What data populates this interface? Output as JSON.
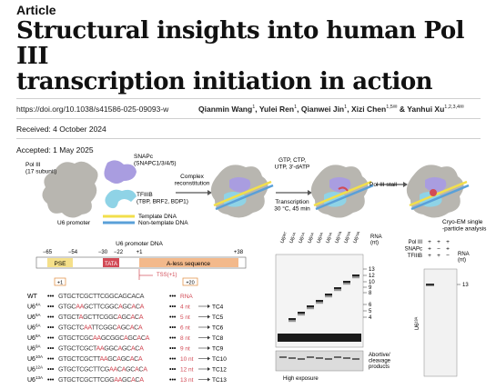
{
  "article": {
    "kind": "Article",
    "title_line1": "Structural insights into human Pol III",
    "title_line2": "transcription initiation in action",
    "doi": "https://doi.org/10.1038/s41586-025-09093-w",
    "authors": [
      {
        "name": "Qianmin Wang",
        "sup": "1"
      },
      {
        "name": "Yulei Ren",
        "sup": "1"
      },
      {
        "name": "Qianwei Jin",
        "sup": "1"
      },
      {
        "name": "Xizi Chen",
        "sup": "1,5✉"
      },
      {
        "name": "Yanhui Xu",
        "sup": "1,2,3,4✉"
      }
    ],
    "received": "Received: 4 October 2024",
    "accepted": "Accepted: 1 May 2025"
  },
  "schematic": {
    "pol3_label": "Pol III\n(17 subunit)",
    "snapc_label": "SNAPc\n(SNAPC1/3/4/5)",
    "tfiiib_label": "TFIIIB\n(TBP, BRF2, BDP1)",
    "u6_promoter_label": "U6 promoter",
    "template_dna": "Template DNA",
    "nontemplate_dna": "Non-template DNA",
    "step1": "Complex\nreconstitution",
    "step2_top": "GTP, CTP,\nUTP, 3′-dATP",
    "step2_bottom": "Transcription\n30 °C, 45 min",
    "step3": "Pol III stall",
    "step4": "Cryo-EM single\n-particle analysis",
    "colors": {
      "pol3": "#b8b6b0",
      "snapc": "#a99de0",
      "tfiiib": "#8fd3e6",
      "template": "#f2df4b",
      "nontemplate": "#5aa0d8",
      "arrow": "#555555"
    }
  },
  "promoter": {
    "header": "U6 promoter DNA",
    "positions": [
      "−65",
      "−54",
      "−30",
      "−22",
      "+1",
      "+38"
    ],
    "pse": "PSE",
    "tata": "TATA",
    "aless": "A-less sequence",
    "tss": "TSS(+1)",
    "plus1": "+1",
    "plus20": "+20",
    "colors": {
      "pse": "#f5e08a",
      "tata": "#d24a55",
      "aless": "#f3b98b"
    }
  },
  "sequences": [
    {
      "name": "WT",
      "sup": "",
      "seq": "GTGCTCGCTTCGGCAGCACA",
      "len": "RNA",
      "tc": ""
    },
    {
      "name": "U6",
      "sup": "4A",
      "seq": "GTGCAAGCTTCGGCAGCACA",
      "len": "4 nt",
      "tc": "TC4"
    },
    {
      "name": "U6",
      "sup": "5A",
      "seq": "GTGCTAGCTTCGGCAGCACA",
      "len": "5 nt",
      "tc": "TC5"
    },
    {
      "name": "U6",
      "sup": "6A",
      "seq": "GTGCTCAATTCGGCAGCACA",
      "len": "6 nt",
      "tc": "TC6"
    },
    {
      "name": "U6",
      "sup": "8A",
      "seq": "GTGCTCGCAAGCGGCAGCACA",
      "len": "8 nt",
      "tc": "TC8"
    },
    {
      "name": "U6",
      "sup": "9A",
      "seq": "GTGCTCGCTAAGGCAGCACA",
      "len": "9 nt",
      "tc": "TC9"
    },
    {
      "name": "U6",
      "sup": "10A",
      "seq": "GTGCTCGCTTAAGCAGCACA",
      "len": "10 nt",
      "tc": "TC10"
    },
    {
      "name": "U6",
      "sup": "12A",
      "seq": "GTGCTCGCTTCGAACAGCACA",
      "len": "12 nt",
      "tc": "TC12"
    },
    {
      "name": "U6",
      "sup": "13A",
      "seq": "GTGCTCGCTTCGGAAGCACA",
      "len": "13 nt",
      "tc": "TC13"
    }
  ],
  "gel1": {
    "lanes": [
      "U6ᵂᵀ",
      "U6⁴ᴬ",
      "U6⁵ᴬ",
      "U6⁶ᴬ",
      "U6⁸ᴬ",
      "U6⁹ᴬ",
      "U6¹⁰ᴬ",
      "U6¹²ᴬ",
      "U6¹³ᴬ"
    ],
    "rna_label": "RNA\n(nt)",
    "size_markers": [
      "13",
      "12",
      "10",
      "9",
      "8",
      "6",
      "5",
      "4"
    ],
    "abortive": "Abortive/\ncleavage\nproducts",
    "exposure": "High exposure"
  },
  "gel2": {
    "rows": [
      {
        "name": "Pol III",
        "vals": [
          "+",
          "+",
          "+"
        ]
      },
      {
        "name": "SNAPc",
        "vals": [
          "+",
          "−",
          "+"
        ]
      },
      {
        "name": "TFIIIB",
        "vals": [
          "+",
          "+",
          "−"
        ]
      }
    ],
    "rna_label": "RNA\n(nt)",
    "marker": "13",
    "lane_label": "U6¹³ᴬ"
  }
}
